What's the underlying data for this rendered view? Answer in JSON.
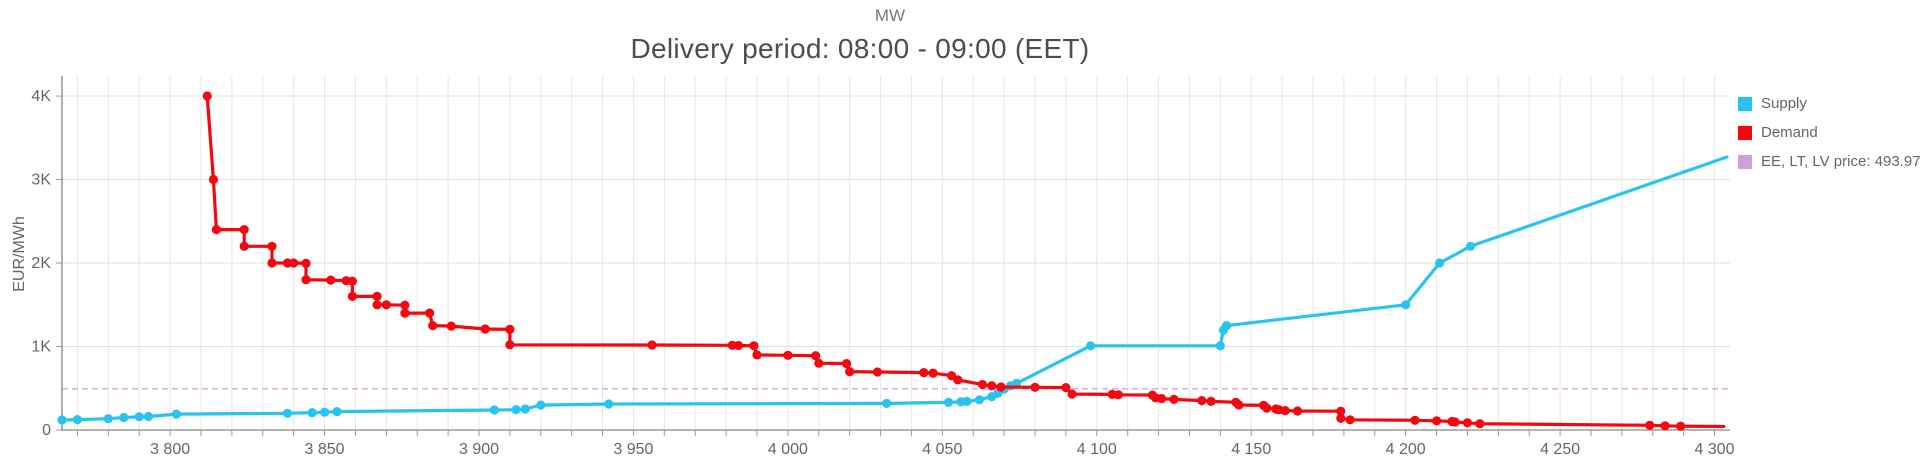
{
  "header": {
    "top_axis_label": "MW",
    "title": "Delivery period: 08:00 - 09:00 (EET)"
  },
  "y_axis": {
    "label": "EUR/MWh",
    "ticks": [
      {
        "value": 0,
        "label": "0"
      },
      {
        "value": 1000,
        "label": "1K"
      },
      {
        "value": 2000,
        "label": "2K"
      },
      {
        "value": 3000,
        "label": "3K"
      },
      {
        "value": 4000,
        "label": "4K"
      }
    ]
  },
  "x_axis": {
    "ticks": [
      {
        "value": 3800,
        "label": "3 800"
      },
      {
        "value": 3850,
        "label": "3 850"
      },
      {
        "value": 3900,
        "label": "3 900"
      },
      {
        "value": 3950,
        "label": "3 950"
      },
      {
        "value": 4000,
        "label": "4 000"
      },
      {
        "value": 4050,
        "label": "4 050"
      },
      {
        "value": 4100,
        "label": "4 100"
      },
      {
        "value": 4150,
        "label": "4 150"
      },
      {
        "value": 4200,
        "label": "4 200"
      },
      {
        "value": 4250,
        "label": "4 250"
      },
      {
        "value": 4300,
        "label": "4 300"
      }
    ],
    "minor_step": 10
  },
  "legend": {
    "items": [
      {
        "label": "Supply",
        "color": "#29c3f2"
      },
      {
        "label": "Demand",
        "color": "#f5070f"
      },
      {
        "label": "EE, LT, LV price: 493.97",
        "color": "#cfa0d8"
      }
    ]
  },
  "colors": {
    "supply": "#29c3f2",
    "demand": "#f5070f",
    "price_line": "#dcaee2",
    "grid": "#e6e6e6",
    "axis": "#9b9b9b",
    "tick_text": "#666666"
  },
  "chart_data": {
    "type": "line",
    "title": "Delivery period: 08:00 - 09:00 (EET)",
    "xlabel": "MW",
    "ylabel": "EUR/MWh",
    "xlim": [
      3765,
      4305
    ],
    "ylim": [
      0,
      4240
    ],
    "grid": true,
    "legend_position": "right-top",
    "price_line": {
      "label": "EE, LT, LV price",
      "value": 493.97
    },
    "series": [
      {
        "name": "Supply",
        "points": [
          [
            3765,
            120
          ],
          [
            3770,
            125
          ],
          [
            3780,
            135
          ],
          [
            3785,
            150
          ],
          [
            3790,
            158
          ],
          [
            3793,
            162
          ],
          [
            3802,
            190
          ],
          [
            3838,
            200
          ],
          [
            3846,
            208
          ],
          [
            3850,
            213
          ],
          [
            3854,
            220
          ],
          [
            3905,
            240
          ],
          [
            3912,
            243
          ],
          [
            3915,
            252
          ],
          [
            3920,
            298
          ],
          [
            3942,
            312
          ],
          [
            4032,
            318
          ],
          [
            4052,
            330
          ],
          [
            4056,
            338
          ],
          [
            4058,
            342
          ],
          [
            4062,
            362
          ],
          [
            4066,
            400
          ],
          [
            4068,
            438
          ],
          [
            4070,
            490
          ],
          [
            4072,
            528
          ],
          [
            4074,
            558
          ],
          [
            4098,
            1008
          ],
          [
            4140,
            1008
          ],
          [
            4141,
            1195
          ],
          [
            4142,
            1250
          ],
          [
            4200,
            1500
          ],
          [
            4211,
            2000
          ],
          [
            4221,
            2200
          ],
          [
            4304,
            3270
          ]
        ],
        "end_marker": false
      },
      {
        "name": "Demand",
        "points": [
          [
            3812,
            4000
          ],
          [
            3814,
            3000
          ],
          [
            3815,
            2400
          ],
          [
            3824,
            2400
          ],
          [
            3824,
            2200
          ],
          [
            3833,
            2200
          ],
          [
            3833,
            2000
          ],
          [
            3838,
            2000
          ],
          [
            3840,
            2000
          ],
          [
            3844,
            1995
          ],
          [
            3844,
            1800
          ],
          [
            3852,
            1795
          ],
          [
            3857,
            1788
          ],
          [
            3859,
            1782
          ],
          [
            3859,
            1600
          ],
          [
            3867,
            1600
          ],
          [
            3867,
            1500
          ],
          [
            3870,
            1500
          ],
          [
            3876,
            1495
          ],
          [
            3876,
            1400
          ],
          [
            3884,
            1400
          ],
          [
            3885,
            1250
          ],
          [
            3891,
            1245
          ],
          [
            3902,
            1210
          ],
          [
            3910,
            1205
          ],
          [
            3910,
            1020
          ],
          [
            3956,
            1018
          ],
          [
            3982,
            1015
          ],
          [
            3984,
            1012
          ],
          [
            3989,
            1008
          ],
          [
            3990,
            900
          ],
          [
            4000,
            895
          ],
          [
            4009,
            890
          ],
          [
            4010,
            800
          ],
          [
            4019,
            795
          ],
          [
            4020,
            700
          ],
          [
            4029,
            695
          ],
          [
            4044,
            688
          ],
          [
            4047,
            682
          ],
          [
            4053,
            650
          ],
          [
            4055,
            600
          ],
          [
            4063,
            545
          ],
          [
            4066,
            528
          ],
          [
            4069,
            515
          ],
          [
            4080,
            512
          ],
          [
            4090,
            508
          ],
          [
            4092,
            430
          ],
          [
            4105,
            426
          ],
          [
            4107,
            422
          ],
          [
            4118,
            418
          ],
          [
            4119,
            386
          ],
          [
            4121,
            376
          ],
          [
            4125,
            366
          ],
          [
            4134,
            352
          ],
          [
            4137,
            342
          ],
          [
            4145,
            332
          ],
          [
            4146,
            300
          ],
          [
            4154,
            295
          ],
          [
            4155,
            262
          ],
          [
            4158,
            252
          ],
          [
            4159,
            242
          ],
          [
            4161,
            232
          ],
          [
            4165,
            228
          ],
          [
            4179,
            225
          ],
          [
            4179,
            140
          ],
          [
            4182,
            122
          ],
          [
            4203,
            116
          ],
          [
            4210,
            110
          ],
          [
            4215,
            102
          ],
          [
            4216,
            96
          ],
          [
            4220,
            86
          ],
          [
            4224,
            76
          ],
          [
            4279,
            56
          ],
          [
            4284,
            50
          ],
          [
            4289,
            46
          ],
          [
            4303,
            42
          ]
        ],
        "end_marker": false
      }
    ]
  }
}
